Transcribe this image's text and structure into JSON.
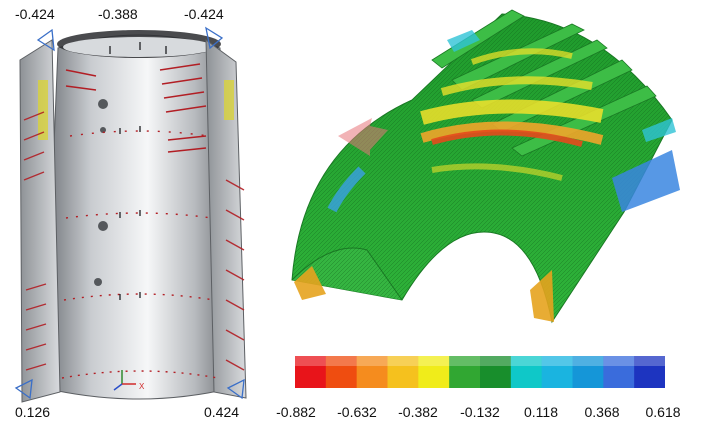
{
  "left_model": {
    "top_labels": [
      "-0.424",
      "-0.388",
      "-0.424"
    ],
    "bottom_labels": [
      "0.126",
      "0.424"
    ],
    "axis_label": "X"
  },
  "colorbar": {
    "ticks": [
      "-0.882",
      "-0.632",
      "-0.382",
      "-0.132",
      "0.118",
      "0.368",
      "0.618"
    ],
    "colors": [
      "#e8141a",
      "#ef4d10",
      "#f58c1e",
      "#f5c11e",
      "#f0ec1a",
      "#31a732",
      "#188e2c",
      "#0fc8c8",
      "#1ab4e0",
      "#1596d8",
      "#3a6cdc",
      "#1d34c0"
    ]
  }
}
